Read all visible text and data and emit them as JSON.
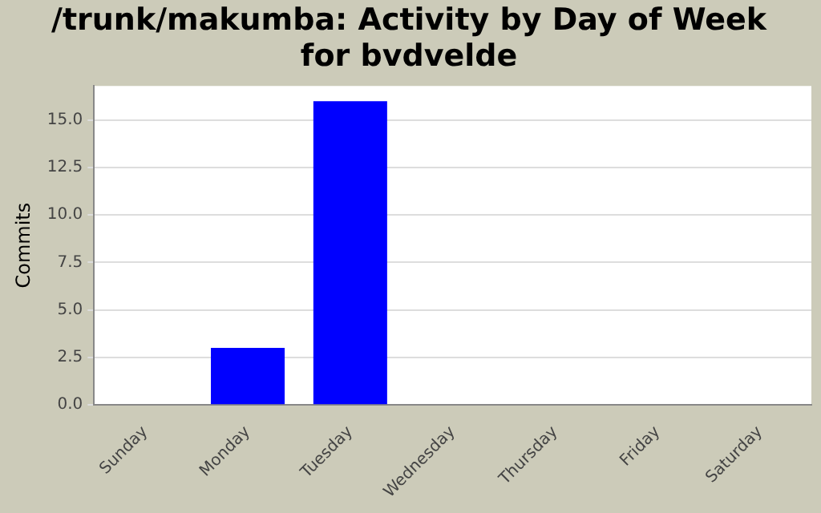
{
  "chart_data": {
    "type": "bar",
    "title": "/trunk/makumba: Activity by Day of Week for bvdvelde",
    "ylabel": "Commits",
    "categories": [
      "Sunday",
      "Monday",
      "Tuesday",
      "Wednesday",
      "Thursday",
      "Friday",
      "Saturday"
    ],
    "values": [
      0,
      3,
      16,
      0,
      0,
      0,
      0
    ],
    "color": "#0000ff",
    "ylim": [
      0,
      16.8
    ],
    "yticks": [
      {
        "value": 0,
        "label": "0.0"
      },
      {
        "value": 2.5,
        "label": "2.5"
      },
      {
        "value": 5,
        "label": "5.0"
      },
      {
        "value": 7.5,
        "label": "7.5"
      },
      {
        "value": 10,
        "label": "10.0"
      },
      {
        "value": 12.5,
        "label": "12.5"
      },
      {
        "value": 15,
        "label": "15.0"
      }
    ],
    "grid": "y"
  }
}
